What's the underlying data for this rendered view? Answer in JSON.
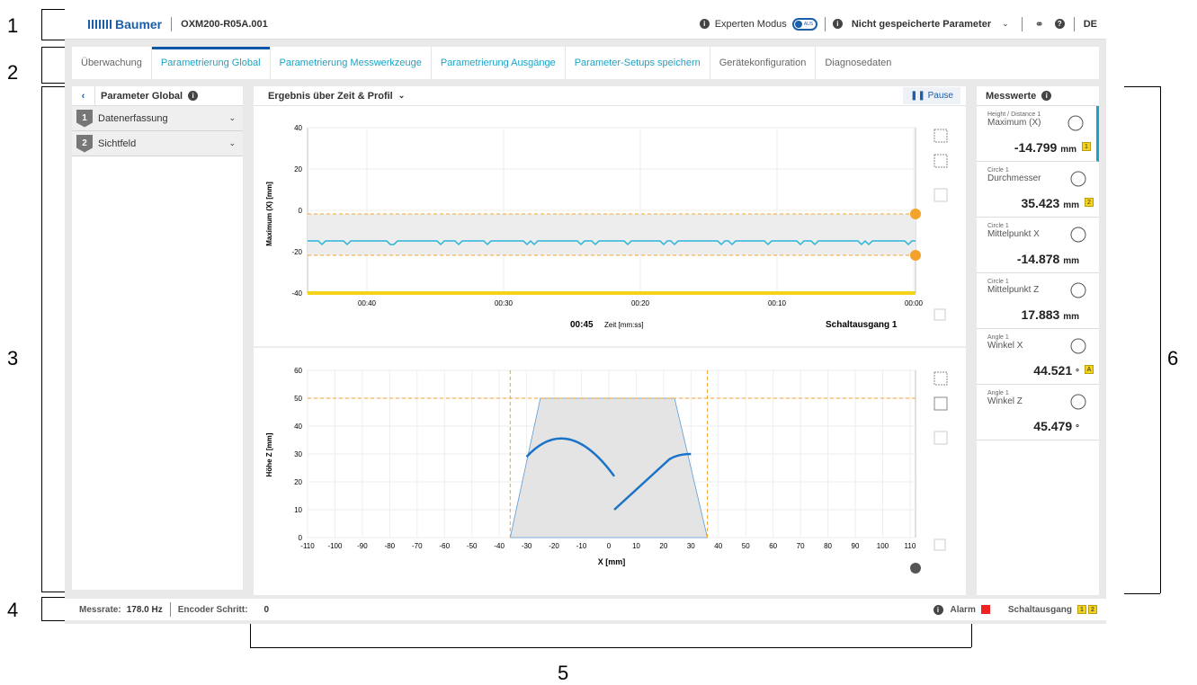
{
  "callouts": [
    "1",
    "2",
    "3",
    "4",
    "5",
    "6"
  ],
  "topbar": {
    "brand": "Baumer",
    "device": "OXM200-R05A.001",
    "expert_mode": "Experten Modus",
    "toggle_text": "AUS",
    "unsaved": "Nicht gespeicherte Parameter",
    "lang": "DE"
  },
  "tabs": [
    {
      "label": "Überwachung"
    },
    {
      "label": "Parametrierung Global"
    },
    {
      "label": "Parametrierung Messwerkzeuge"
    },
    {
      "label": "Parametrierung Ausgänge"
    },
    {
      "label": "Parameter-Setups speichern"
    },
    {
      "label": "Gerätekonfiguration"
    },
    {
      "label": "Diagnosedaten"
    }
  ],
  "left": {
    "title": "Parameter Global",
    "items": [
      {
        "num": "1",
        "label": "Datenerfassung"
      },
      {
        "num": "2",
        "label": "Sichtfeld"
      }
    ]
  },
  "center": {
    "header": "Ergebnis über Zeit & Profil",
    "pause": "Pause",
    "time_chart": {
      "ylabel": "Maximum (X) [mm]",
      "yticks": [
        "40",
        "20",
        "0",
        "-20",
        "-40"
      ],
      "xticks": [
        "00:40",
        "00:30",
        "00:20",
        "00:10",
        "00:00"
      ],
      "time_value": "00:45",
      "time_label": "Zeit [mm:ss]",
      "output": "Schaltausgang 1"
    },
    "profile_chart": {
      "ylabel": "Höhe Z [mm]",
      "xlabel": "X [mm]",
      "yticks": [
        "60",
        "50",
        "40",
        "30",
        "20",
        "10",
        "0"
      ],
      "xticks": [
        "-110",
        "-100",
        "-90",
        "-80",
        "-70",
        "-60",
        "-50",
        "-40",
        "-30",
        "-20",
        "-10",
        "0",
        "10",
        "20",
        "30",
        "40",
        "50",
        "60",
        "70",
        "80",
        "90",
        "100",
        "110"
      ]
    }
  },
  "right": {
    "title": "Messwerte",
    "values": [
      {
        "cat": "Height / Distance 1",
        "name": "Maximum (X)",
        "value": "-14.799",
        "unit": "mm",
        "badge": "1",
        "icon": "height-distance-icon"
      },
      {
        "cat": "Circle 1",
        "name": "Durchmesser",
        "value": "35.423",
        "unit": "mm",
        "badge": "2",
        "icon": "diameter-icon"
      },
      {
        "cat": "Circle 1",
        "name": "Mittelpunkt X",
        "value": "-14.878",
        "unit": "mm",
        "badge": "",
        "icon": "center-x-icon"
      },
      {
        "cat": "Circle 1",
        "name": "Mittelpunkt Z",
        "value": "17.883",
        "unit": "mm",
        "badge": "",
        "icon": "center-z-icon"
      },
      {
        "cat": "Angle 1",
        "name": "Winkel X",
        "value": "44.521",
        "unit": "°",
        "badge": "A",
        "icon": "angle-x-icon"
      },
      {
        "cat": "Angle 1",
        "name": "Winkel Z",
        "value": "45.479",
        "unit": "°",
        "badge": "",
        "icon": "angle-z-icon"
      }
    ]
  },
  "status": {
    "rate_label": "Messrate:",
    "rate_value": "178.0 Hz",
    "encoder_label": "Encoder Schritt:",
    "encoder_value": "0",
    "alarm": "Alarm",
    "output": "Schaltausgang",
    "badges": [
      "1",
      "2"
    ]
  }
}
